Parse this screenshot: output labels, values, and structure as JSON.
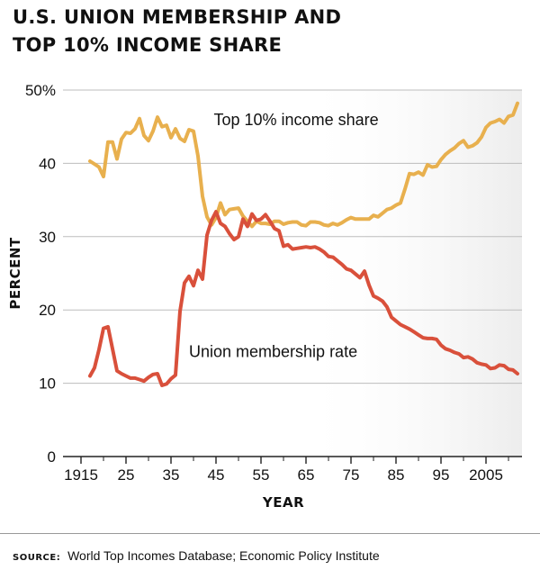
{
  "title": {
    "line1": "U.S. UNION MEMBERSHIP AND",
    "line2": "TOP 10% INCOME SHARE"
  },
  "source": {
    "label": "SOURCE:",
    "text": "World Top Incomes Database; Economic Policy Institute"
  },
  "colors": {
    "income": "#e8b04e",
    "union": "#d9503b",
    "grid": "#bdbdbd",
    "axis": "#222222",
    "background_fade": "#ededed"
  },
  "chart_data": {
    "type": "line",
    "xlabel": "YEAR",
    "ylabel": "PERCENT",
    "xlim": [
      1911,
      2013
    ],
    "ylim": [
      0,
      50
    ],
    "x_ticks": [
      1915,
      1925,
      1935,
      1945,
      1955,
      1965,
      1975,
      1985,
      1995,
      2005
    ],
    "x_tick_labels": [
      "1915",
      "25",
      "35",
      "45",
      "55",
      "65",
      "75",
      "85",
      "95",
      "2005"
    ],
    "y_ticks": [
      0,
      10,
      20,
      30,
      40,
      50
    ],
    "y_tick_labels": [
      "0",
      "10",
      "20",
      "30",
      "40",
      "50%"
    ],
    "grid": true,
    "series": [
      {
        "name": "Top 10% income share",
        "color": "#e8b04e",
        "points": [
          [
            1917,
            40.3
          ],
          [
            1918,
            39.9
          ],
          [
            1919,
            39.5
          ],
          [
            1920,
            38.2
          ],
          [
            1921,
            42.9
          ],
          [
            1922,
            42.9
          ],
          [
            1923,
            40.6
          ],
          [
            1924,
            43.3
          ],
          [
            1925,
            44.2
          ],
          [
            1926,
            44.1
          ],
          [
            1927,
            44.7
          ],
          [
            1928,
            46.1
          ],
          [
            1929,
            43.8
          ],
          [
            1930,
            43.1
          ],
          [
            1931,
            44.4
          ],
          [
            1932,
            46.3
          ],
          [
            1933,
            45.0
          ],
          [
            1934,
            45.2
          ],
          [
            1935,
            43.5
          ],
          [
            1936,
            44.7
          ],
          [
            1937,
            43.4
          ],
          [
            1938,
            43.0
          ],
          [
            1939,
            44.6
          ],
          [
            1940,
            44.4
          ],
          [
            1941,
            41.0
          ],
          [
            1942,
            35.5
          ],
          [
            1943,
            32.7
          ],
          [
            1944,
            31.6
          ],
          [
            1945,
            32.6
          ],
          [
            1946,
            34.6
          ],
          [
            1947,
            33.0
          ],
          [
            1948,
            33.7
          ],
          [
            1949,
            33.8
          ],
          [
            1950,
            33.9
          ],
          [
            1951,
            32.8
          ],
          [
            1952,
            32.1
          ],
          [
            1953,
            31.4
          ],
          [
            1954,
            32.1
          ],
          [
            1955,
            31.8
          ],
          [
            1956,
            31.8
          ],
          [
            1957,
            31.7
          ],
          [
            1958,
            32.1
          ],
          [
            1959,
            32.1
          ],
          [
            1960,
            31.7
          ],
          [
            1961,
            31.9
          ],
          [
            1962,
            32.0
          ],
          [
            1963,
            32.0
          ],
          [
            1964,
            31.6
          ],
          [
            1965,
            31.5
          ],
          [
            1966,
            32.0
          ],
          [
            1967,
            32.0
          ],
          [
            1968,
            31.9
          ],
          [
            1969,
            31.6
          ],
          [
            1970,
            31.5
          ],
          [
            1971,
            31.8
          ],
          [
            1972,
            31.6
          ],
          [
            1973,
            31.9
          ],
          [
            1974,
            32.3
          ],
          [
            1975,
            32.6
          ],
          [
            1976,
            32.4
          ],
          [
            1977,
            32.4
          ],
          [
            1978,
            32.4
          ],
          [
            1979,
            32.4
          ],
          [
            1980,
            32.9
          ],
          [
            1981,
            32.7
          ],
          [
            1982,
            33.2
          ],
          [
            1983,
            33.7
          ],
          [
            1984,
            33.9
          ],
          [
            1985,
            34.3
          ],
          [
            1986,
            34.6
          ],
          [
            1987,
            36.5
          ],
          [
            1988,
            38.6
          ],
          [
            1989,
            38.5
          ],
          [
            1990,
            38.8
          ],
          [
            1991,
            38.4
          ],
          [
            1992,
            39.8
          ],
          [
            1993,
            39.5
          ],
          [
            1994,
            39.6
          ],
          [
            1995,
            40.5
          ],
          [
            1996,
            41.2
          ],
          [
            1997,
            41.7
          ],
          [
            1998,
            42.1
          ],
          [
            1999,
            42.7
          ],
          [
            2000,
            43.1
          ],
          [
            2001,
            42.2
          ],
          [
            2002,
            42.4
          ],
          [
            2003,
            42.8
          ],
          [
            2004,
            43.6
          ],
          [
            2005,
            44.9
          ],
          [
            2006,
            45.5
          ],
          [
            2007,
            45.7
          ],
          [
            2008,
            46.0
          ],
          [
            2009,
            45.5
          ],
          [
            2010,
            46.4
          ],
          [
            2011,
            46.6
          ],
          [
            2012,
            48.2
          ]
        ]
      },
      {
        "name": "Union membership rate",
        "color": "#d9503b",
        "points": [
          [
            1917,
            11.0
          ],
          [
            1918,
            12.1
          ],
          [
            1919,
            14.6
          ],
          [
            1920,
            17.5
          ],
          [
            1921,
            17.7
          ],
          [
            1922,
            14.7
          ],
          [
            1923,
            11.7
          ],
          [
            1924,
            11.3
          ],
          [
            1925,
            11.0
          ],
          [
            1926,
            10.7
          ],
          [
            1927,
            10.7
          ],
          [
            1928,
            10.5
          ],
          [
            1929,
            10.3
          ],
          [
            1930,
            10.8
          ],
          [
            1931,
            11.2
          ],
          [
            1932,
            11.3
          ],
          [
            1933,
            9.7
          ],
          [
            1934,
            9.9
          ],
          [
            1935,
            10.6
          ],
          [
            1936,
            11.1
          ],
          [
            1937,
            19.8
          ],
          [
            1938,
            23.7
          ],
          [
            1939,
            24.6
          ],
          [
            1940,
            23.3
          ],
          [
            1941,
            25.4
          ],
          [
            1942,
            24.2
          ],
          [
            1943,
            30.2
          ],
          [
            1944,
            32.2
          ],
          [
            1945,
            33.4
          ],
          [
            1946,
            31.8
          ],
          [
            1947,
            31.4
          ],
          [
            1948,
            30.4
          ],
          [
            1949,
            29.6
          ],
          [
            1950,
            30.0
          ],
          [
            1951,
            32.4
          ],
          [
            1952,
            31.4
          ],
          [
            1953,
            33.1
          ],
          [
            1954,
            32.2
          ],
          [
            1955,
            32.4
          ],
          [
            1956,
            33.0
          ],
          [
            1957,
            32.1
          ],
          [
            1958,
            31.1
          ],
          [
            1959,
            30.8
          ],
          [
            1960,
            28.7
          ],
          [
            1961,
            28.9
          ],
          [
            1962,
            28.3
          ],
          [
            1963,
            28.4
          ],
          [
            1964,
            28.5
          ],
          [
            1965,
            28.6
          ],
          [
            1966,
            28.5
          ],
          [
            1967,
            28.6
          ],
          [
            1968,
            28.3
          ],
          [
            1969,
            27.9
          ],
          [
            1970,
            27.3
          ],
          [
            1971,
            27.2
          ],
          [
            1972,
            26.7
          ],
          [
            1973,
            26.2
          ],
          [
            1974,
            25.6
          ],
          [
            1975,
            25.4
          ],
          [
            1976,
            24.9
          ],
          [
            1977,
            24.4
          ],
          [
            1978,
            25.3
          ],
          [
            1979,
            23.4
          ],
          [
            1980,
            21.9
          ],
          [
            1981,
            21.6
          ],
          [
            1982,
            21.2
          ],
          [
            1983,
            20.4
          ],
          [
            1984,
            19.0
          ],
          [
            1985,
            18.5
          ],
          [
            1986,
            18.0
          ],
          [
            1987,
            17.7
          ],
          [
            1988,
            17.4
          ],
          [
            1989,
            17.0
          ],
          [
            1990,
            16.6
          ],
          [
            1991,
            16.2
          ],
          [
            1992,
            16.1
          ],
          [
            1993,
            16.1
          ],
          [
            1994,
            16.0
          ],
          [
            1995,
            15.2
          ],
          [
            1996,
            14.7
          ],
          [
            1997,
            14.5
          ],
          [
            1998,
            14.2
          ],
          [
            1999,
            14.0
          ],
          [
            2000,
            13.5
          ],
          [
            2001,
            13.6
          ],
          [
            2002,
            13.3
          ],
          [
            2003,
            12.8
          ],
          [
            2004,
            12.6
          ],
          [
            2005,
            12.5
          ],
          [
            2006,
            12.0
          ],
          [
            2007,
            12.1
          ],
          [
            2008,
            12.5
          ],
          [
            2009,
            12.4
          ],
          [
            2010,
            11.9
          ],
          [
            2011,
            11.8
          ],
          [
            2012,
            11.3
          ]
        ]
      }
    ],
    "annotations": [
      {
        "text": "Top 10% income share",
        "series": 0,
        "anchor": [
          1944.5,
          45.2
        ]
      },
      {
        "text": "Union membership rate",
        "series": 1,
        "anchor": [
          1939,
          13.6
        ]
      }
    ]
  }
}
